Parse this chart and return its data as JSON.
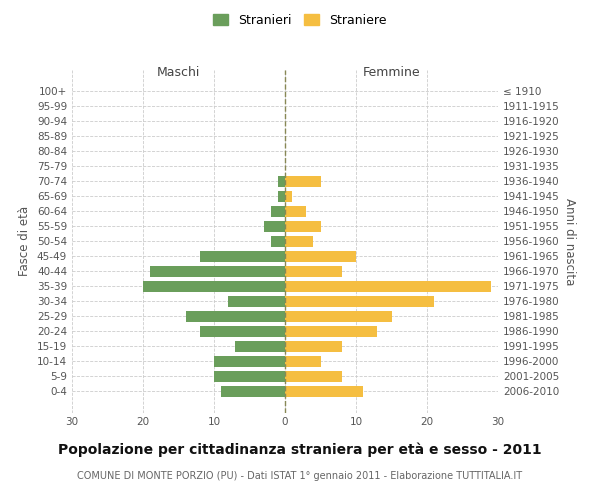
{
  "age_groups": [
    "100+",
    "95-99",
    "90-94",
    "85-89",
    "80-84",
    "75-79",
    "70-74",
    "65-69",
    "60-64",
    "55-59",
    "50-54",
    "45-49",
    "40-44",
    "35-39",
    "30-34",
    "25-29",
    "20-24",
    "15-19",
    "10-14",
    "5-9",
    "0-4"
  ],
  "birth_years": [
    "≤ 1910",
    "1911-1915",
    "1916-1920",
    "1921-1925",
    "1926-1930",
    "1931-1935",
    "1936-1940",
    "1941-1945",
    "1946-1950",
    "1951-1955",
    "1956-1960",
    "1961-1965",
    "1966-1970",
    "1971-1975",
    "1976-1980",
    "1981-1985",
    "1986-1990",
    "1991-1995",
    "1996-2000",
    "2001-2005",
    "2006-2010"
  ],
  "maschi": [
    0,
    0,
    0,
    0,
    0,
    0,
    1,
    1,
    2,
    3,
    2,
    12,
    19,
    20,
    8,
    14,
    12,
    7,
    10,
    10,
    9
  ],
  "femmine": [
    0,
    0,
    0,
    0,
    0,
    0,
    5,
    1,
    3,
    5,
    4,
    10,
    8,
    29,
    21,
    15,
    13,
    8,
    5,
    8,
    11
  ],
  "maschi_color": "#6a9e5b",
  "femmine_color": "#f5be41",
  "background_color": "#ffffff",
  "grid_color": "#cccccc",
  "title": "Popolazione per cittadinanza straniera per età e sesso - 2011",
  "subtitle": "COMUNE DI MONTE PORZIO (PU) - Dati ISTAT 1° gennaio 2011 - Elaborazione TUTTITALIA.IT",
  "left_label": "Maschi",
  "right_label": "Femmine",
  "ylabel": "Fasce di età",
  "ylabel_right": "Anni di nascita",
  "legend_maschi": "Stranieri",
  "legend_femmine": "Straniere",
  "xlim": 30,
  "title_fontsize": 10,
  "subtitle_fontsize": 7,
  "tick_fontsize": 7.5,
  "label_fontsize": 9
}
